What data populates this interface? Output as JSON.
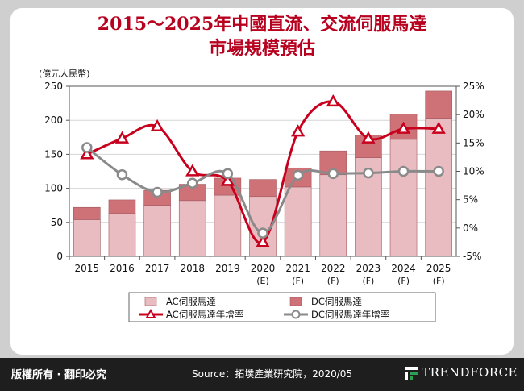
{
  "header": {
    "title_line1": "2015～2025年中國直流、交流伺服馬達",
    "title_line2": "市場規模預估"
  },
  "footer": {
    "rights": "版權所有 · 翻印必究",
    "source": "Source：拓墣產業研究院，2020/05",
    "brand": "TRENDFORCE"
  },
  "chart_data": {
    "type": "bar",
    "stacked": true,
    "categories": [
      "2015",
      "2016",
      "2017",
      "2018",
      "2019",
      "2020",
      "2021",
      "2022",
      "2023",
      "2024",
      "2025"
    ],
    "category_notes": [
      "",
      "",
      "",
      "",
      "",
      "(E)",
      "(F)",
      "(F)",
      "(F)",
      "(F)",
      "(F)"
    ],
    "ylabel": "(億元人民幣)",
    "ylim": [
      0,
      250
    ],
    "yticks": [
      0,
      50,
      100,
      150,
      200,
      250
    ],
    "y2lim": [
      -5,
      25
    ],
    "y2ticks": [
      "-5%",
      "0%",
      "5%",
      "10%",
      "15%",
      "20%",
      "25%"
    ],
    "y2tick_values": [
      -5,
      0,
      5,
      10,
      15,
      20,
      25
    ],
    "grid": true,
    "legend_position": "bottom",
    "series": [
      {
        "name": "AC伺服馬達",
        "kind": "bar",
        "axis": "left",
        "color": "#e8bcc0",
        "values": [
          54,
          63,
          75,
          82,
          90,
          88,
          102,
          120,
          145,
          172,
          203
        ]
      },
      {
        "name": "DC伺服馬達",
        "kind": "bar",
        "axis": "left",
        "color": "#cf7278",
        "values": [
          18,
          20,
          22,
          24,
          25,
          25,
          28,
          35,
          33,
          37,
          40
        ]
      },
      {
        "name": "AC伺服馬達年增率",
        "kind": "line",
        "axis": "right",
        "color": "#c8001e",
        "marker": "triangle",
        "values": [
          13.0,
          15.8,
          17.9,
          10.0,
          8.3,
          -2.5,
          17.0,
          22.3,
          15.8,
          17.5,
          17.5
        ]
      },
      {
        "name": "DC伺服馬達年增率",
        "kind": "line",
        "axis": "right",
        "color": "#8a8a8a",
        "marker": "circle",
        "values": [
          14.2,
          9.4,
          6.3,
          7.9,
          9.6,
          -0.9,
          9.3,
          9.6,
          9.7,
          10.0,
          10.0
        ]
      }
    ]
  }
}
